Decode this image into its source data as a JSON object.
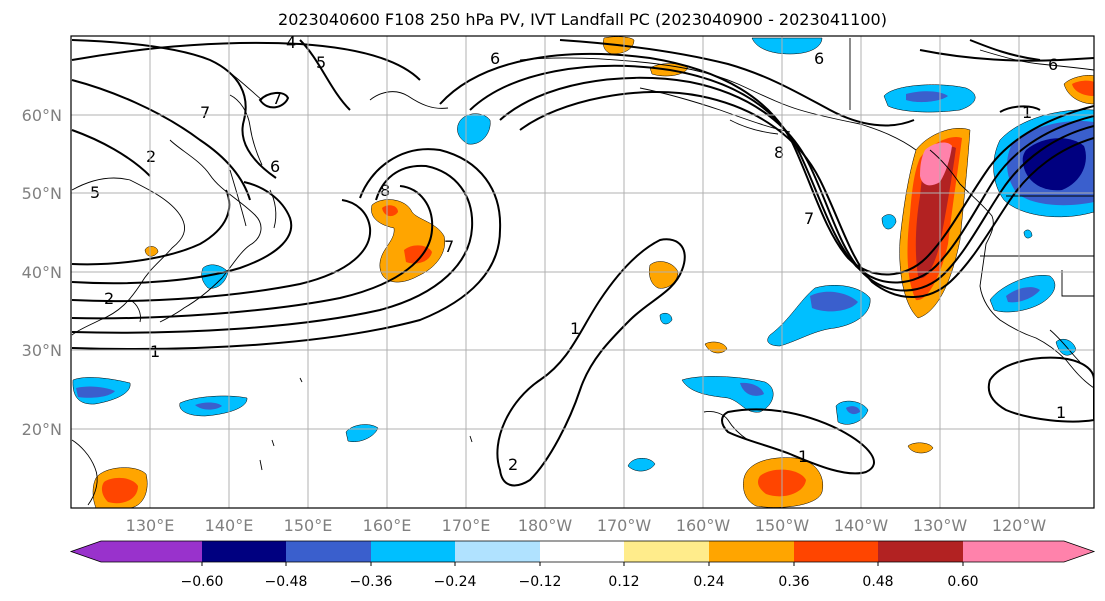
{
  "title": "2023040600 F108 250 hPa PV, IVT Landfall PC (2023040900 - 2023041100)",
  "lat_labels": [
    "60°N",
    "50°N",
    "40°N",
    "30°N",
    "20°N"
  ],
  "lon_labels": [
    "130°E",
    "140°E",
    "150°E",
    "160°E",
    "170°E",
    "180°W",
    "170°W",
    "160°W",
    "150°W",
    "140°W",
    "130°W",
    "120°W"
  ],
  "colorbar": {
    "tick_labels": [
      "−0.60",
      "−0.48",
      "−0.36",
      "−0.24",
      "−0.12",
      "0.12",
      "0.24",
      "0.36",
      "0.48",
      "0.60"
    ],
    "colors": [
      "#9932cc",
      "#000080",
      "#3a5fcd",
      "#00bfff",
      "#b0e2ff",
      "#ffffff",
      "#ffec8b",
      "#ffa500",
      "#ff4500",
      "#b22222",
      "#ff82ab"
    ]
  },
  "contour_labels": [
    "1",
    "1",
    "1",
    "1",
    "1",
    "2",
    "2",
    "2",
    "4",
    "5",
    "5",
    "6",
    "6",
    "6",
    "6",
    "7",
    "7",
    "7",
    "7",
    "8",
    "8"
  ],
  "colors": {
    "grid": "#b0b0b0",
    "tick_label": "#808080",
    "land": "#000000",
    "contour": "#000000"
  }
}
